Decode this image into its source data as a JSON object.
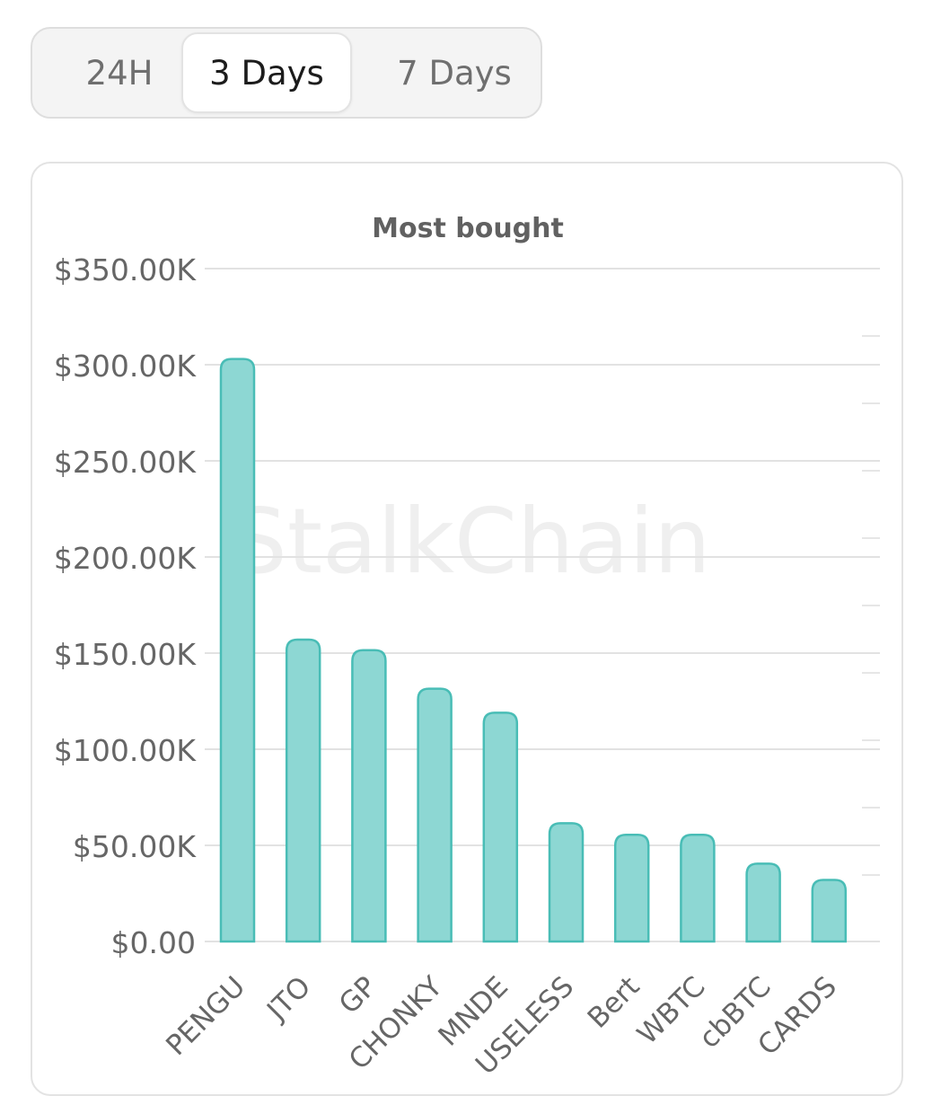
{
  "timeframe": {
    "options": [
      "24H",
      "3 Days",
      "7 Days"
    ],
    "selected": "3 Days"
  },
  "watermark": "StalkChain",
  "colors": {
    "bar_fill": "#8dd7d3",
    "bar_stroke": "#49bdb6"
  },
  "chart_data": {
    "type": "bar",
    "title": "Most bought",
    "categories": [
      "PENGU",
      "JTO",
      "GP",
      "CHONKY",
      "MNDE",
      "USELESS",
      "Bert",
      "WBTC",
      "cbBTC",
      "CARDS"
    ],
    "values": [
      303000,
      157000,
      151500,
      131500,
      119000,
      61500,
      55500,
      55500,
      40500,
      32000
    ],
    "ylim": [
      0,
      350000
    ],
    "yticks": [
      {
        "value": 0,
        "label": "$0.00"
      },
      {
        "value": 50000,
        "label": "$50.00K"
      },
      {
        "value": 100000,
        "label": "$100.00K"
      },
      {
        "value": 150000,
        "label": "$150.00K"
      },
      {
        "value": 200000,
        "label": "$200.00K"
      },
      {
        "value": 250000,
        "label": "$250.00K"
      },
      {
        "value": 300000,
        "label": "$300.00K"
      },
      {
        "value": 350000,
        "label": "$350.00K"
      }
    ],
    "grid": true,
    "legend": "none"
  }
}
